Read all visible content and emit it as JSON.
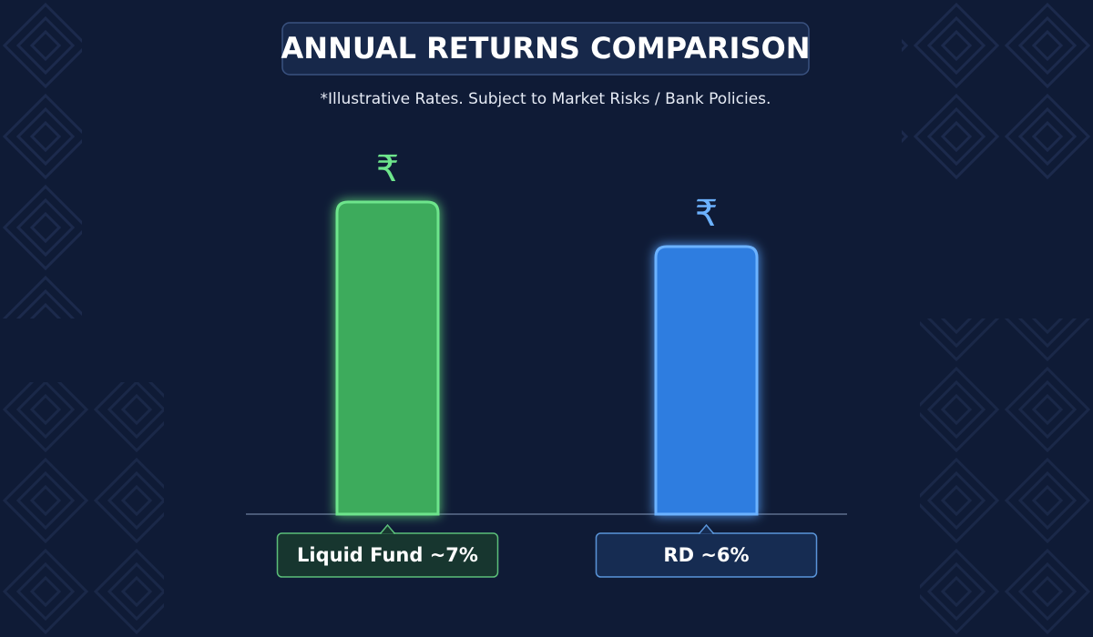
{
  "chart_data": {
    "type": "bar",
    "title": "ANNUAL RETURNS COMPARISON",
    "subtitle": "*Illustrative Rates. Subject to Market Risks / Bank Policies.",
    "categories": [
      "Liquid Fund ~7%",
      "RD ~6%"
    ],
    "values": [
      7,
      6
    ],
    "colors": [
      "#3dab5c",
      "#2f7de0"
    ],
    "icons": [
      "₹",
      "₹"
    ]
  }
}
